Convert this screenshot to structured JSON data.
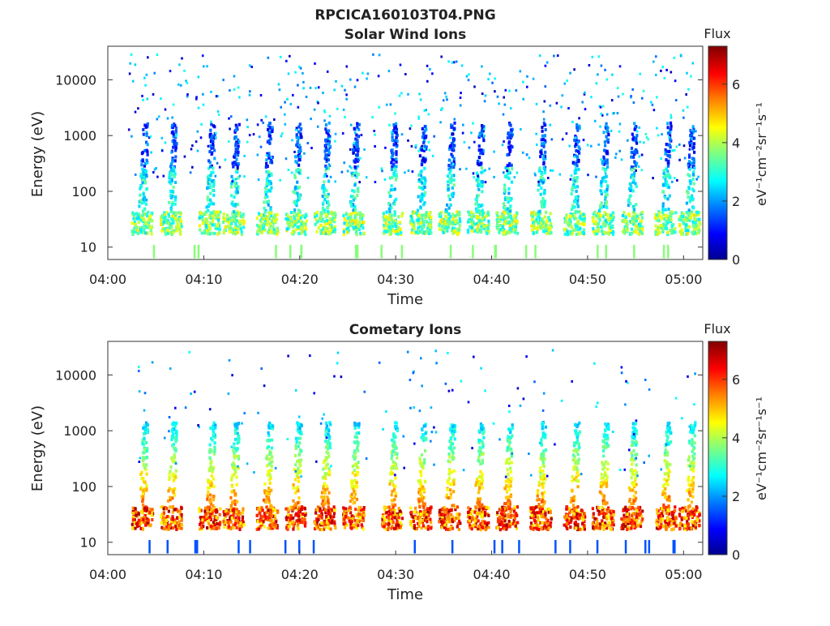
{
  "figure_title": "RPCICA160103T04.PNG",
  "colors": {
    "jet": [
      "#00008f",
      "#0000ff",
      "#0080ff",
      "#00ffff",
      "#80ff80",
      "#ffff00",
      "#ff8000",
      "#ff0000",
      "#800000"
    ]
  },
  "chart_data": [
    {
      "type": "heatmap",
      "title": "Solar Wind Ions",
      "xlabel": "Time",
      "ylabel": "Energy (eV)",
      "y_scale": "log",
      "ylim": [
        6,
        40000
      ],
      "xlim": [
        "04:00",
        "05:02"
      ],
      "x_ticks": [
        "04:00",
        "04:10",
        "04:20",
        "04:30",
        "04:40",
        "04:50",
        "05:00"
      ],
      "y_ticks": [
        "10",
        "100",
        "1000",
        "10000"
      ],
      "colorbar": {
        "title": "Flux",
        "unit": "eV⁻¹cm⁻²sr⁻¹s⁻¹",
        "range": [
          0,
          7.3
        ],
        "ticks": [
          "0",
          "2",
          "4",
          "6"
        ]
      },
      "burst_times_min": [
        3.5,
        6.5,
        10.5,
        13,
        16.5,
        19.5,
        22.5,
        25.5,
        29.5,
        32.5,
        35.5,
        38.5,
        41.5,
        45,
        48.5,
        51.5,
        54.5,
        58,
        60.5
      ],
      "typical_flux": 3.2
    },
    {
      "type": "heatmap",
      "title": "Cometary Ions",
      "xlabel": "Time",
      "ylabel": "Energy (eV)",
      "y_scale": "log",
      "ylim": [
        6,
        40000
      ],
      "xlim": [
        "04:00",
        "05:02"
      ],
      "x_ticks": [
        "04:00",
        "04:10",
        "04:20",
        "04:30",
        "04:40",
        "04:50",
        "05:00"
      ],
      "y_ticks": [
        "10",
        "100",
        "1000",
        "10000"
      ],
      "colorbar": {
        "title": "Flux",
        "unit": "eV⁻¹cm⁻²sr⁻¹s⁻¹",
        "range": [
          0,
          7.3
        ],
        "ticks": [
          "0",
          "2",
          "4",
          "6"
        ]
      },
      "burst_times_min": [
        3.5,
        6.5,
        10.5,
        13,
        16.5,
        19.5,
        22.5,
        25.5,
        29.5,
        32.5,
        35.5,
        38.5,
        41.5,
        45,
        48.5,
        51.5,
        54.5,
        58,
        60.5
      ],
      "typical_flux": 5.8
    }
  ]
}
